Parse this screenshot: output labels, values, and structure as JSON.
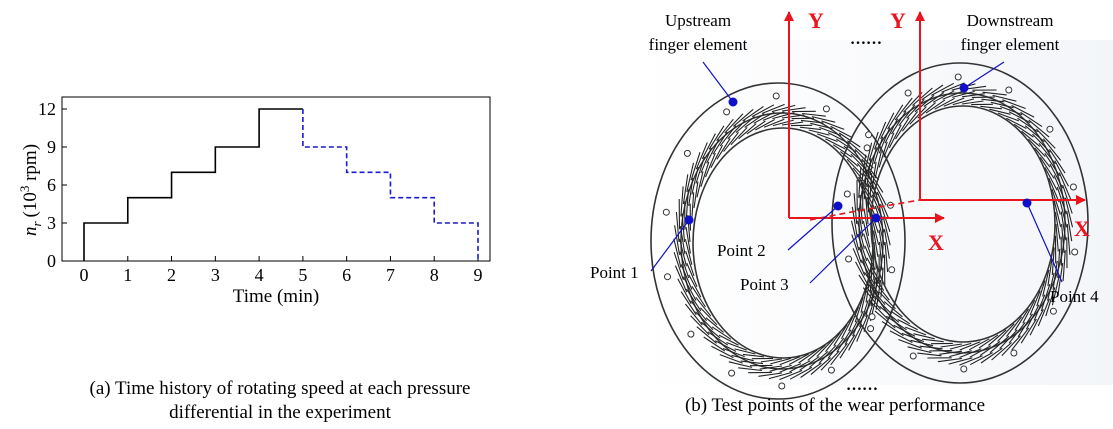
{
  "colors": {
    "increase_line": "#000000",
    "decrease_line": "#1a1ad0",
    "axis_red": "#e8141e",
    "point_blue": "#1010c8",
    "ring": "#333333"
  },
  "chart_data": {
    "type": "line",
    "title": "",
    "xlabel": "Time (min)",
    "ylabel_symbol": "n",
    "ylabel_subscript": "r",
    "ylabel_base": "(10",
    "ylabel_exp": "3",
    "ylabel_unit": " rpm)",
    "xlim": [
      0,
      9
    ],
    "ylim": [
      0,
      12
    ],
    "x_ticks": [
      0,
      1,
      2,
      3,
      4,
      5,
      6,
      7,
      8,
      9
    ],
    "y_ticks": [
      0,
      3,
      6,
      9,
      12
    ],
    "grid": false,
    "series": [
      {
        "style": "solid",
        "color": "#000000",
        "x": [
          0,
          0,
          1,
          1,
          2,
          2,
          3,
          3,
          4,
          4,
          5
        ],
        "y": [
          0,
          3,
          3,
          5,
          5,
          7,
          7,
          9,
          9,
          12,
          12
        ]
      },
      {
        "style": "dashed",
        "color": "#1a1ad0",
        "x": [
          5,
          5,
          6,
          6,
          7,
          7,
          8,
          8,
          9,
          9
        ],
        "y": [
          12,
          9,
          9,
          7,
          7,
          5,
          5,
          3,
          3,
          0
        ]
      }
    ]
  },
  "diagram": {
    "upstream_label": [
      "Upstream",
      "finger element"
    ],
    "downstream_label": [
      "Downstream",
      "finger element"
    ],
    "axis_x": "X",
    "axis_y": "Y",
    "ellipsis": "……",
    "points": [
      "Point 1",
      "Point 2",
      "Point 3",
      "Point 4"
    ]
  },
  "captions": {
    "a": [
      "(a) Time history of rotating speed at each pressure",
      "differential in the experiment"
    ],
    "b": "(b) Test points of the wear performance"
  }
}
